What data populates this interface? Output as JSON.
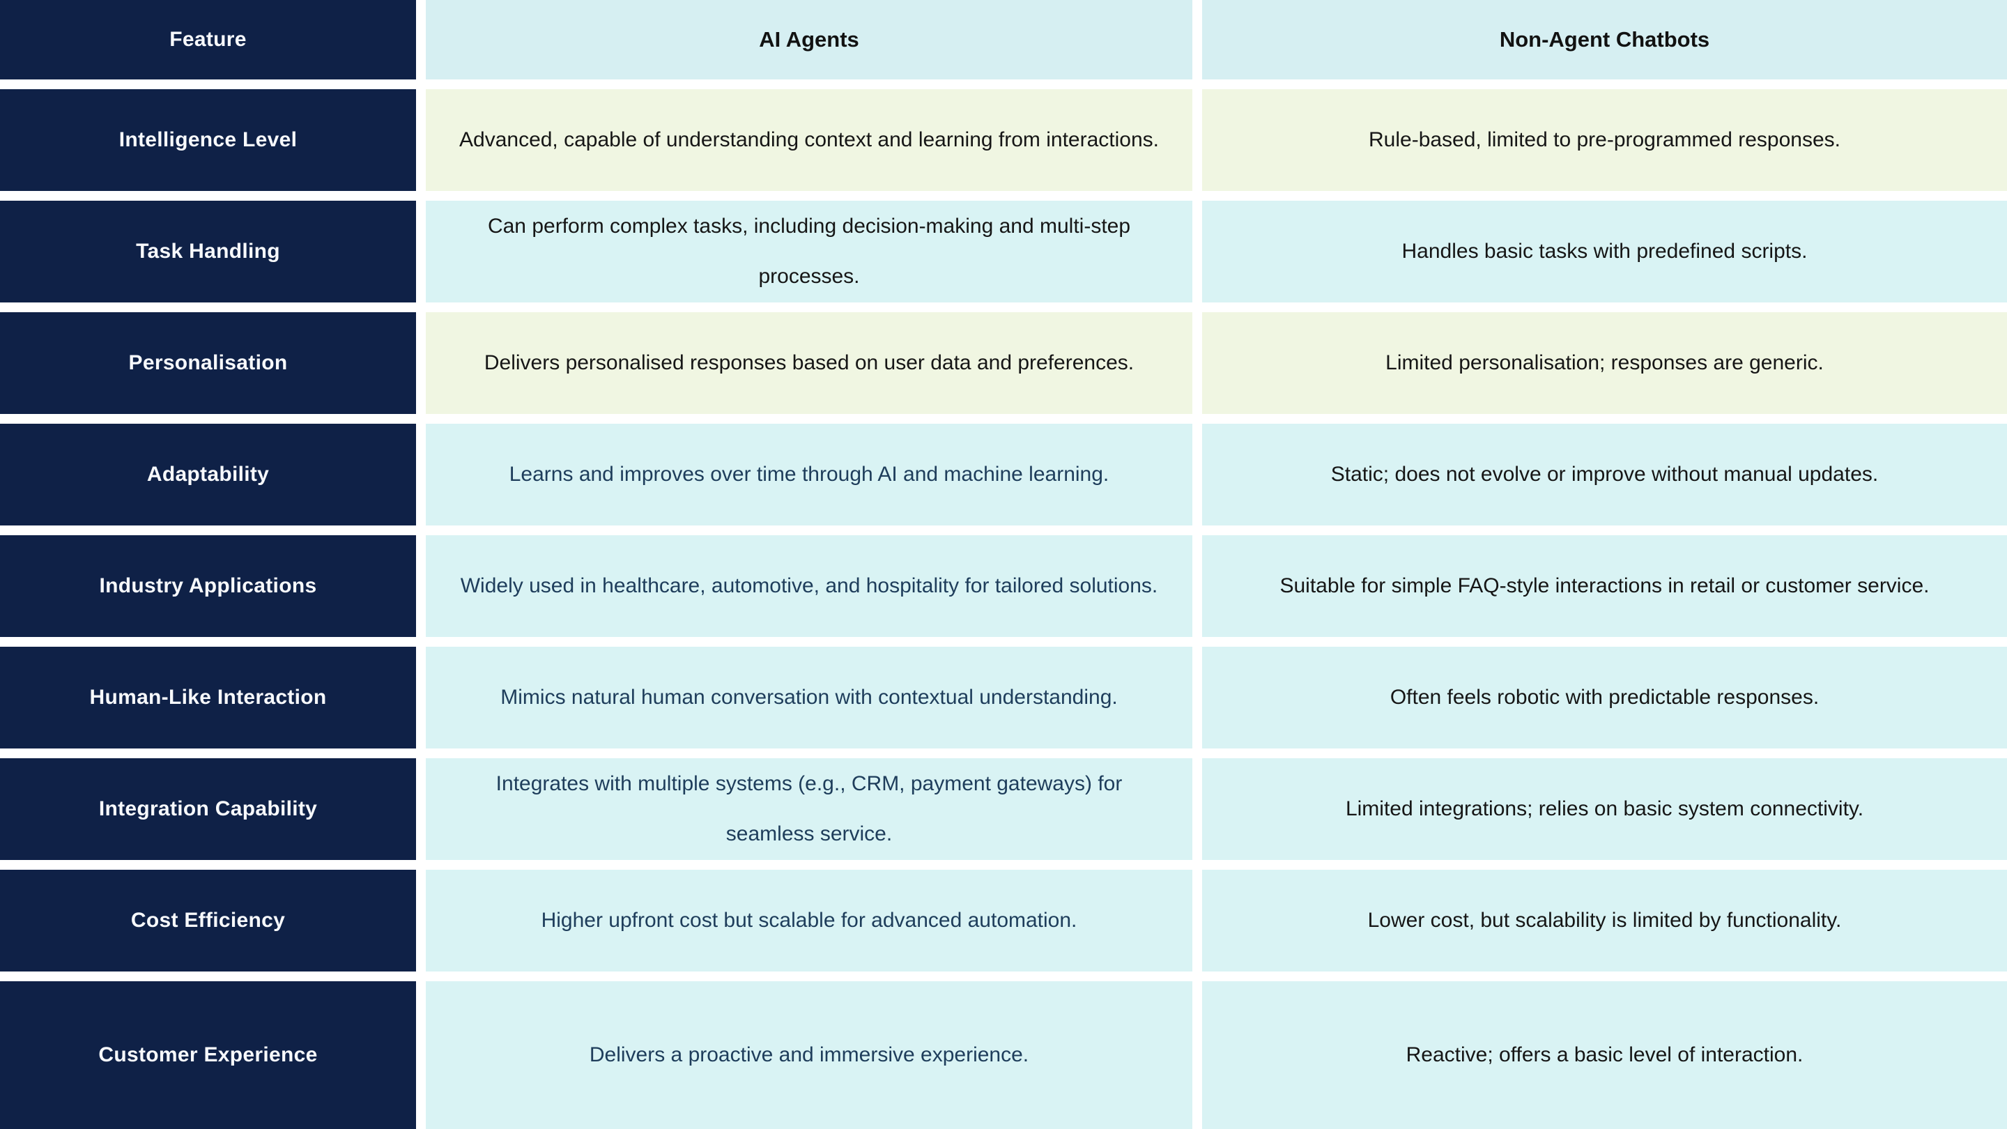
{
  "colors": {
    "feature_column_bg": "#0f2147",
    "header_bg": "#d6eff2",
    "row_cyan_bg": "#d9f3f4",
    "row_cream_bg": "#f0f6e2",
    "divider": "#ffffff",
    "feature_text": "#f7f9fc",
    "body_text": "#161616",
    "ai_accent_text": "#1e3d5b"
  },
  "table": {
    "columns": [
      "Feature",
      "AI Agents",
      "Non-Agent Chatbots"
    ],
    "rows": [
      {
        "feature": "Intelligence Level",
        "ai_agents": "Advanced, capable of understanding context and learning from interactions.",
        "non_agent_chatbots": "Rule-based, limited to pre-programmed responses."
      },
      {
        "feature": "Task Handling",
        "ai_agents": "Can perform complex tasks, including decision-making and multi-step processes.",
        "non_agent_chatbots": "Handles basic tasks with predefined scripts."
      },
      {
        "feature": "Personalisation",
        "ai_agents": "Delivers personalised responses based on user data and preferences.",
        "non_agent_chatbots": "Limited personalisation; responses are generic."
      },
      {
        "feature": "Adaptability",
        "ai_agents": "Learns and improves over time through AI and machine learning.",
        "non_agent_chatbots": "Static; does not evolve or improve without manual updates."
      },
      {
        "feature": "Industry Applications",
        "ai_agents": "Widely used in healthcare, automotive, and hospitality for tailored solutions.",
        "non_agent_chatbots": "Suitable for simple FAQ-style interactions in retail or customer service."
      },
      {
        "feature": "Human-Like Interaction",
        "ai_agents": "Mimics natural human conversation with contextual understanding.",
        "non_agent_chatbots": "Often feels robotic with predictable responses."
      },
      {
        "feature": "Integration Capability",
        "ai_agents": "Integrates with multiple systems (e.g., CRM, payment gateways) for seamless service.",
        "non_agent_chatbots": "Limited integrations; relies on basic system connectivity."
      },
      {
        "feature": "Cost Efficiency",
        "ai_agents": "Higher upfront cost but scalable for advanced automation.",
        "non_agent_chatbots": "Lower cost, but scalability is limited by functionality."
      },
      {
        "feature": "Customer Experience",
        "ai_agents": "Delivers a proactive and immersive experience.",
        "non_agent_chatbots": "Reactive; offers a basic level of interaction."
      }
    ]
  }
}
